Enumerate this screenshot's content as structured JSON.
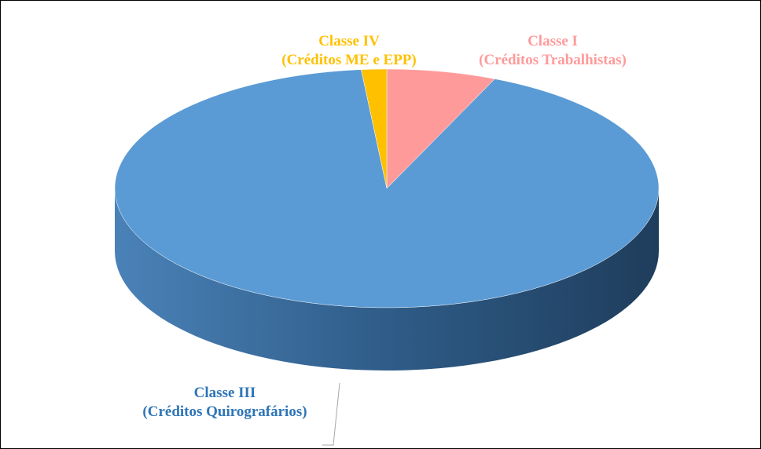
{
  "chart_data": {
    "type": "pie",
    "categories": [
      "Classe I\n(Créditos Trabalhistas)",
      "Classe III\n(Créditos Quirografários)",
      "Classe IV\n(Créditos ME e EPP)"
    ],
    "values": [
      6.5,
      92,
      1.5
    ],
    "colors": [
      "#ff9a9a",
      "#5b9bd5",
      "#ffc000"
    ],
    "label_colors": [
      "#ff9a9a",
      "#2e75b6",
      "#ffc000"
    ]
  }
}
